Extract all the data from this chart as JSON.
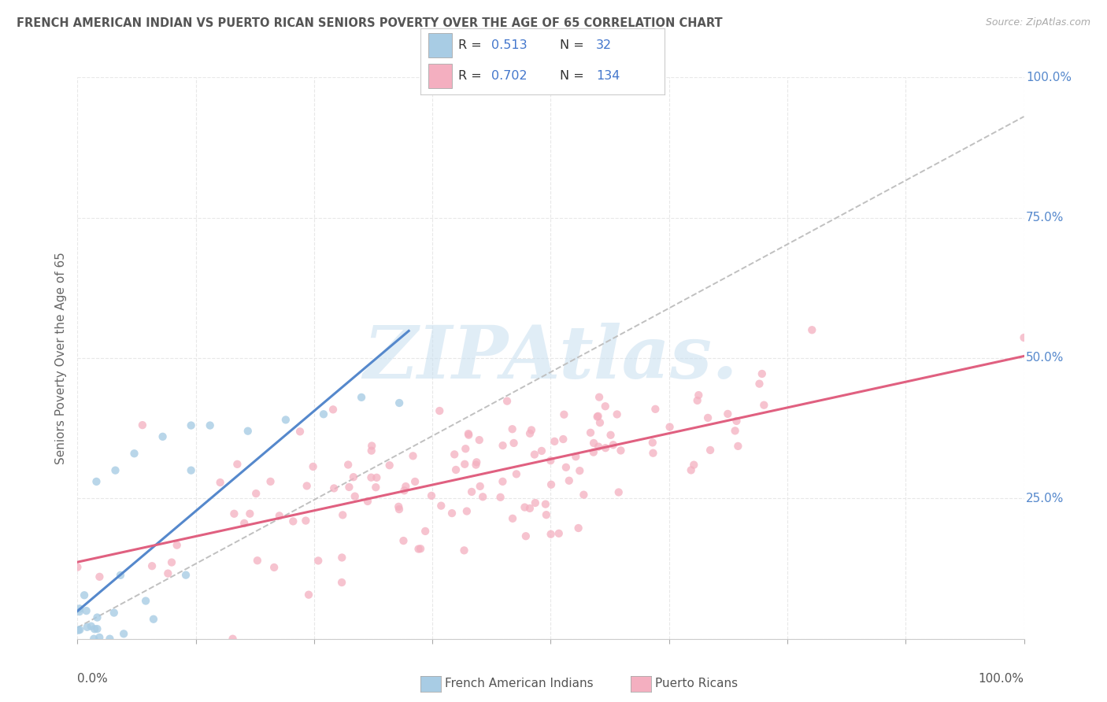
{
  "title": "FRENCH AMERICAN INDIAN VS PUERTO RICAN SENIORS POVERTY OVER THE AGE OF 65 CORRELATION CHART",
  "source": "Source: ZipAtlas.com",
  "ylabel": "Seniors Poverty Over the Age of 65",
  "legend_label1": "French American Indians",
  "legend_label2": "Puerto Ricans",
  "color_blue_scatter": "#a8cce4",
  "color_pink_scatter": "#f4afc0",
  "color_trendline_blue": "#5588cc",
  "color_trendline_pink": "#e06080",
  "color_gray_dashed": "#c0c0c0",
  "watermark_color": "#c8dff0",
  "r1": 0.513,
  "n1": 32,
  "r2": 0.702,
  "n2": 134,
  "watermark": "ZIPAtlas.",
  "background_color": "#ffffff",
  "grid_color": "#e8e8e8",
  "title_color": "#555555",
  "source_color": "#aaaaaa",
  "legend_text_color": "#333333",
  "legend_value_color": "#4477cc",
  "axis_value_color": "#5588cc"
}
